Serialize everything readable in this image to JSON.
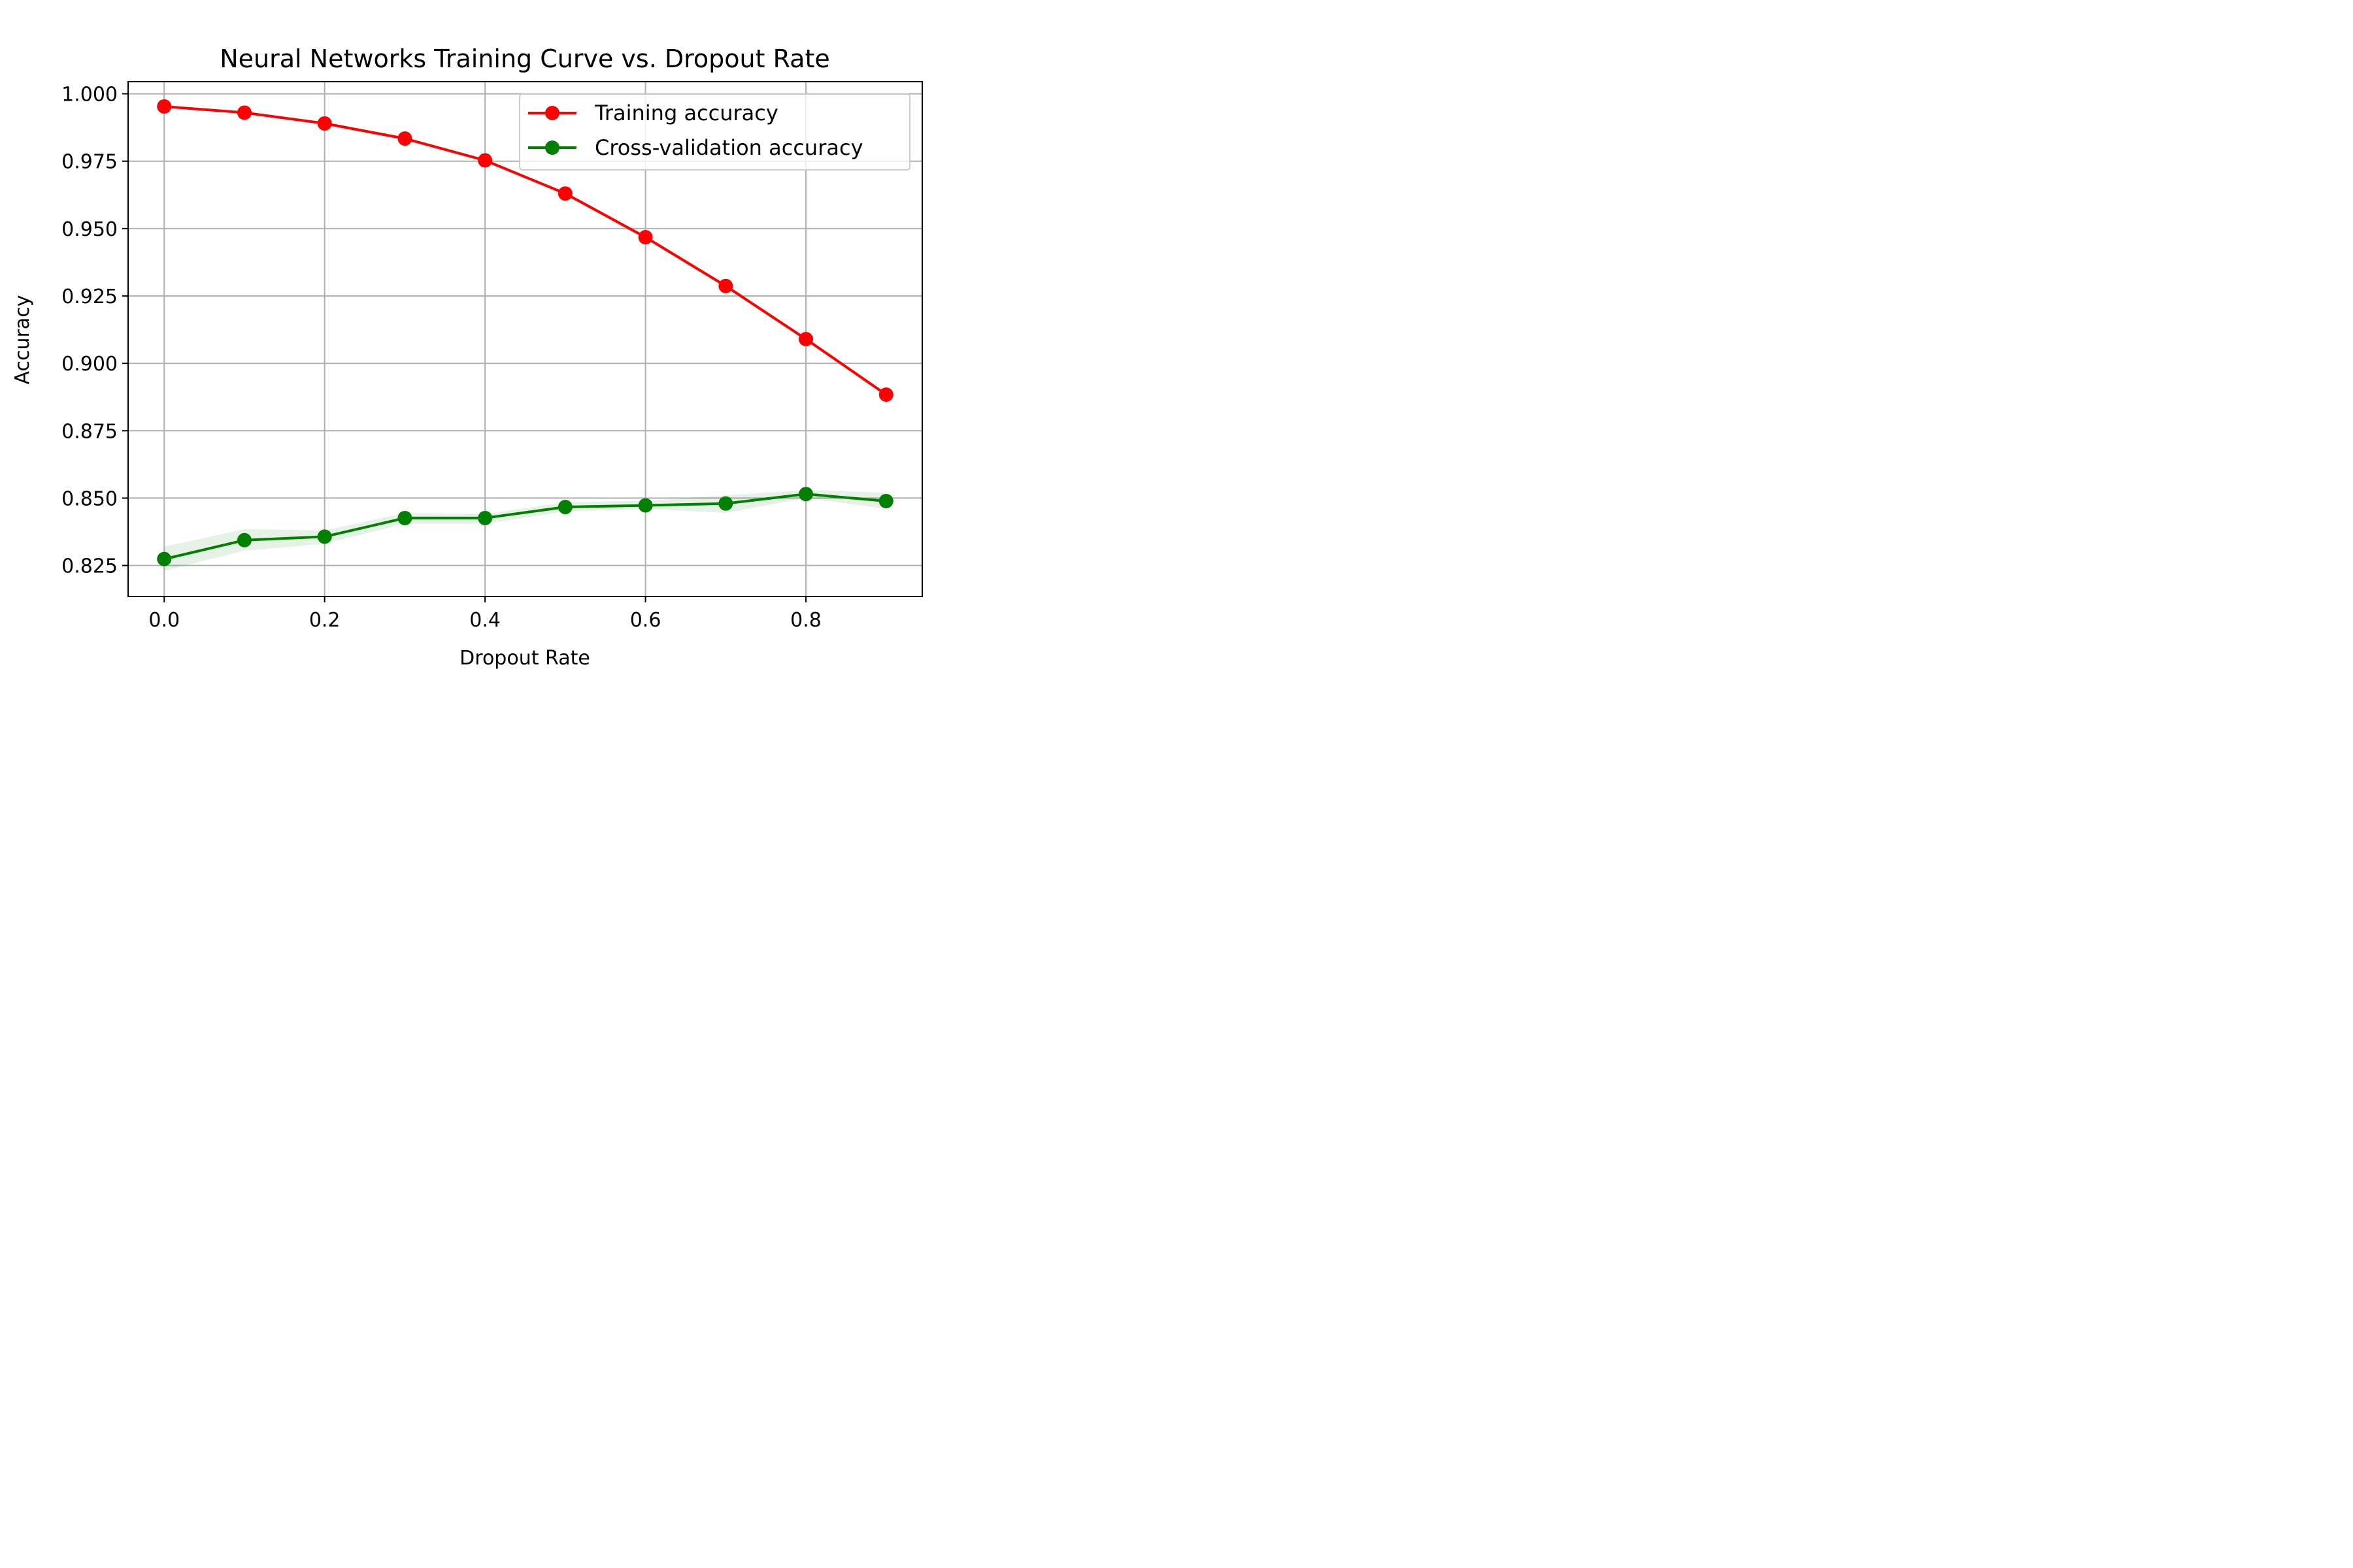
{
  "chart_data": {
    "type": "line",
    "title": "Neural Networks Training Curve vs. Dropout Rate",
    "xlabel": "Dropout Rate",
    "ylabel": "Accuracy",
    "x": [
      0.0,
      0.1,
      0.2,
      0.3,
      0.4,
      0.5,
      0.6,
      0.7,
      0.8,
      0.9
    ],
    "xlim": [
      -0.045,
      0.945
    ],
    "ylim": [
      0.8135,
      1.0045
    ],
    "xticks": [
      0.0,
      0.2,
      0.4,
      0.6,
      0.8
    ],
    "xtick_labels": [
      "0.0",
      "0.2",
      "0.4",
      "0.6",
      "0.8"
    ],
    "yticks": [
      0.825,
      0.85,
      0.875,
      0.9,
      0.925,
      0.95,
      0.975,
      1.0
    ],
    "ytick_labels": [
      "0.825",
      "0.850",
      "0.875",
      "0.900",
      "0.925",
      "0.950",
      "0.975",
      "1.000"
    ],
    "grid": true,
    "legend_position": "top-right",
    "series": [
      {
        "name": "Training accuracy",
        "color": "#ff0000",
        "band_color": "#ff0000",
        "values": [
          0.9953,
          0.993,
          0.989,
          0.9834,
          0.9753,
          0.963,
          0.9468,
          0.9287,
          0.909,
          0.8884
        ],
        "lower": [
          0.995,
          0.9926,
          0.9885,
          0.9828,
          0.9748,
          0.9624,
          0.9461,
          0.928,
          0.9083,
          0.8877
        ],
        "upper": [
          0.9956,
          0.9934,
          0.9895,
          0.984,
          0.9758,
          0.9636,
          0.9475,
          0.9294,
          0.9097,
          0.8891
        ]
      },
      {
        "name": "Cross-validation accuracy",
        "color": "#008000",
        "band_color": "#008000",
        "values": [
          0.8274,
          0.8344,
          0.8357,
          0.8426,
          0.8426,
          0.8467,
          0.8473,
          0.848,
          0.8515,
          0.8489
        ],
        "lower": [
          0.823,
          0.8305,
          0.833,
          0.8405,
          0.8405,
          0.845,
          0.846,
          0.8445,
          0.85,
          0.846
        ],
        "upper": [
          0.832,
          0.8385,
          0.838,
          0.8445,
          0.844,
          0.8485,
          0.849,
          0.851,
          0.853,
          0.852
        ]
      }
    ]
  }
}
